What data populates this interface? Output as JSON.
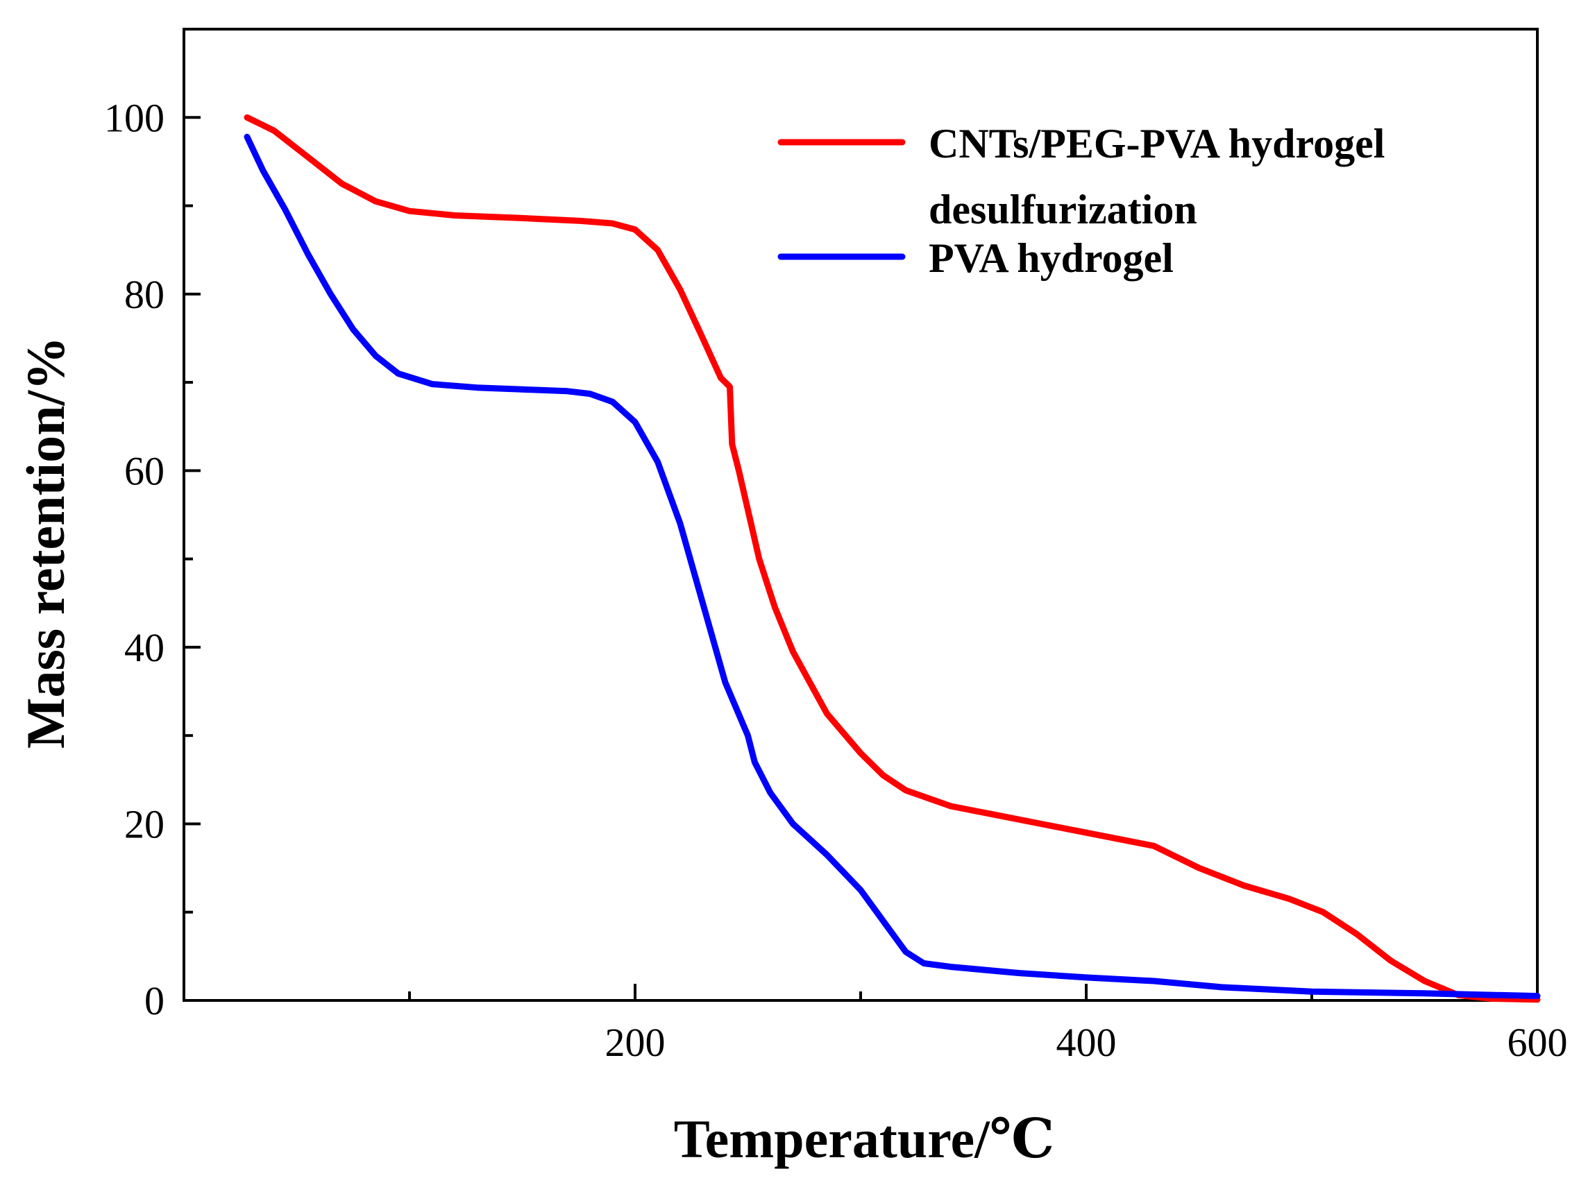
{
  "chart_data": {
    "type": "line",
    "title": "",
    "xlabel": "Temperature/℃",
    "ylabel": "Mass retention/%",
    "xlim": [
      0,
      600
    ],
    "ylim": [
      0,
      110
    ],
    "x_ticks_major": [
      200,
      400,
      600
    ],
    "x_ticks_minor": [
      100,
      300,
      500
    ],
    "y_ticks_major": [
      0,
      20,
      40,
      60,
      80,
      100
    ],
    "y_ticks_minor": [
      10,
      30,
      50,
      70,
      90
    ],
    "grid": false,
    "legend_position": "top-right",
    "series": [
      {
        "name": "CNTs/PEG-PVA hydrogel desulfurization",
        "legend_lines": [
          "CNTs/PEG-PVA hydrogel",
          "desulfurization"
        ],
        "color": "#ff0000",
        "points": [
          [
            28,
            100
          ],
          [
            40,
            98.5
          ],
          [
            55,
            95.5
          ],
          [
            70,
            92.5
          ],
          [
            85,
            90.5
          ],
          [
            100,
            89.4
          ],
          [
            120,
            88.9
          ],
          [
            150,
            88.6
          ],
          [
            175,
            88.3
          ],
          [
            190,
            88.0
          ],
          [
            200,
            87.3
          ],
          [
            210,
            85.0
          ],
          [
            220,
            80.5
          ],
          [
            230,
            75.0
          ],
          [
            238,
            70.5
          ],
          [
            242,
            69.5
          ],
          [
            243,
            63.0
          ],
          [
            246,
            60.0
          ],
          [
            255,
            50.0
          ],
          [
            262,
            44.5
          ],
          [
            270,
            39.5
          ],
          [
            285,
            32.5
          ],
          [
            300,
            28.0
          ],
          [
            310,
            25.5
          ],
          [
            320,
            23.8
          ],
          [
            340,
            22.0
          ],
          [
            360,
            21.0
          ],
          [
            380,
            20.0
          ],
          [
            400,
            19.0
          ],
          [
            420,
            18.0
          ],
          [
            430,
            17.5
          ],
          [
            450,
            15.0
          ],
          [
            470,
            13.0
          ],
          [
            490,
            11.5
          ],
          [
            505,
            10.0
          ],
          [
            520,
            7.5
          ],
          [
            535,
            4.5
          ],
          [
            550,
            2.2
          ],
          [
            565,
            0.6
          ],
          [
            580,
            0.2
          ],
          [
            600,
            0.1
          ]
        ]
      },
      {
        "name": "PVA hydrogel",
        "legend_lines": [
          "PVA hydrogel"
        ],
        "color": "#0000ff",
        "points": [
          [
            28,
            97.8
          ],
          [
            35,
            94.0
          ],
          [
            45,
            89.5
          ],
          [
            55,
            84.5
          ],
          [
            65,
            80.0
          ],
          [
            75,
            76.0
          ],
          [
            85,
            73.0
          ],
          [
            95,
            71.0
          ],
          [
            110,
            69.8
          ],
          [
            130,
            69.4
          ],
          [
            150,
            69.2
          ],
          [
            170,
            69.0
          ],
          [
            180,
            68.7
          ],
          [
            190,
            67.8
          ],
          [
            200,
            65.5
          ],
          [
            210,
            61.0
          ],
          [
            220,
            54.0
          ],
          [
            230,
            45.0
          ],
          [
            240,
            36.0
          ],
          [
            250,
            30.0
          ],
          [
            253,
            27.0
          ],
          [
            260,
            23.5
          ],
          [
            270,
            20.0
          ],
          [
            285,
            16.5
          ],
          [
            300,
            12.5
          ],
          [
            310,
            9.0
          ],
          [
            320,
            5.5
          ],
          [
            328,
            4.2
          ],
          [
            340,
            3.8
          ],
          [
            370,
            3.1
          ],
          [
            400,
            2.6
          ],
          [
            430,
            2.2
          ],
          [
            460,
            1.5
          ],
          [
            500,
            1.0
          ],
          [
            550,
            0.8
          ],
          [
            600,
            0.5
          ]
        ]
      }
    ]
  }
}
